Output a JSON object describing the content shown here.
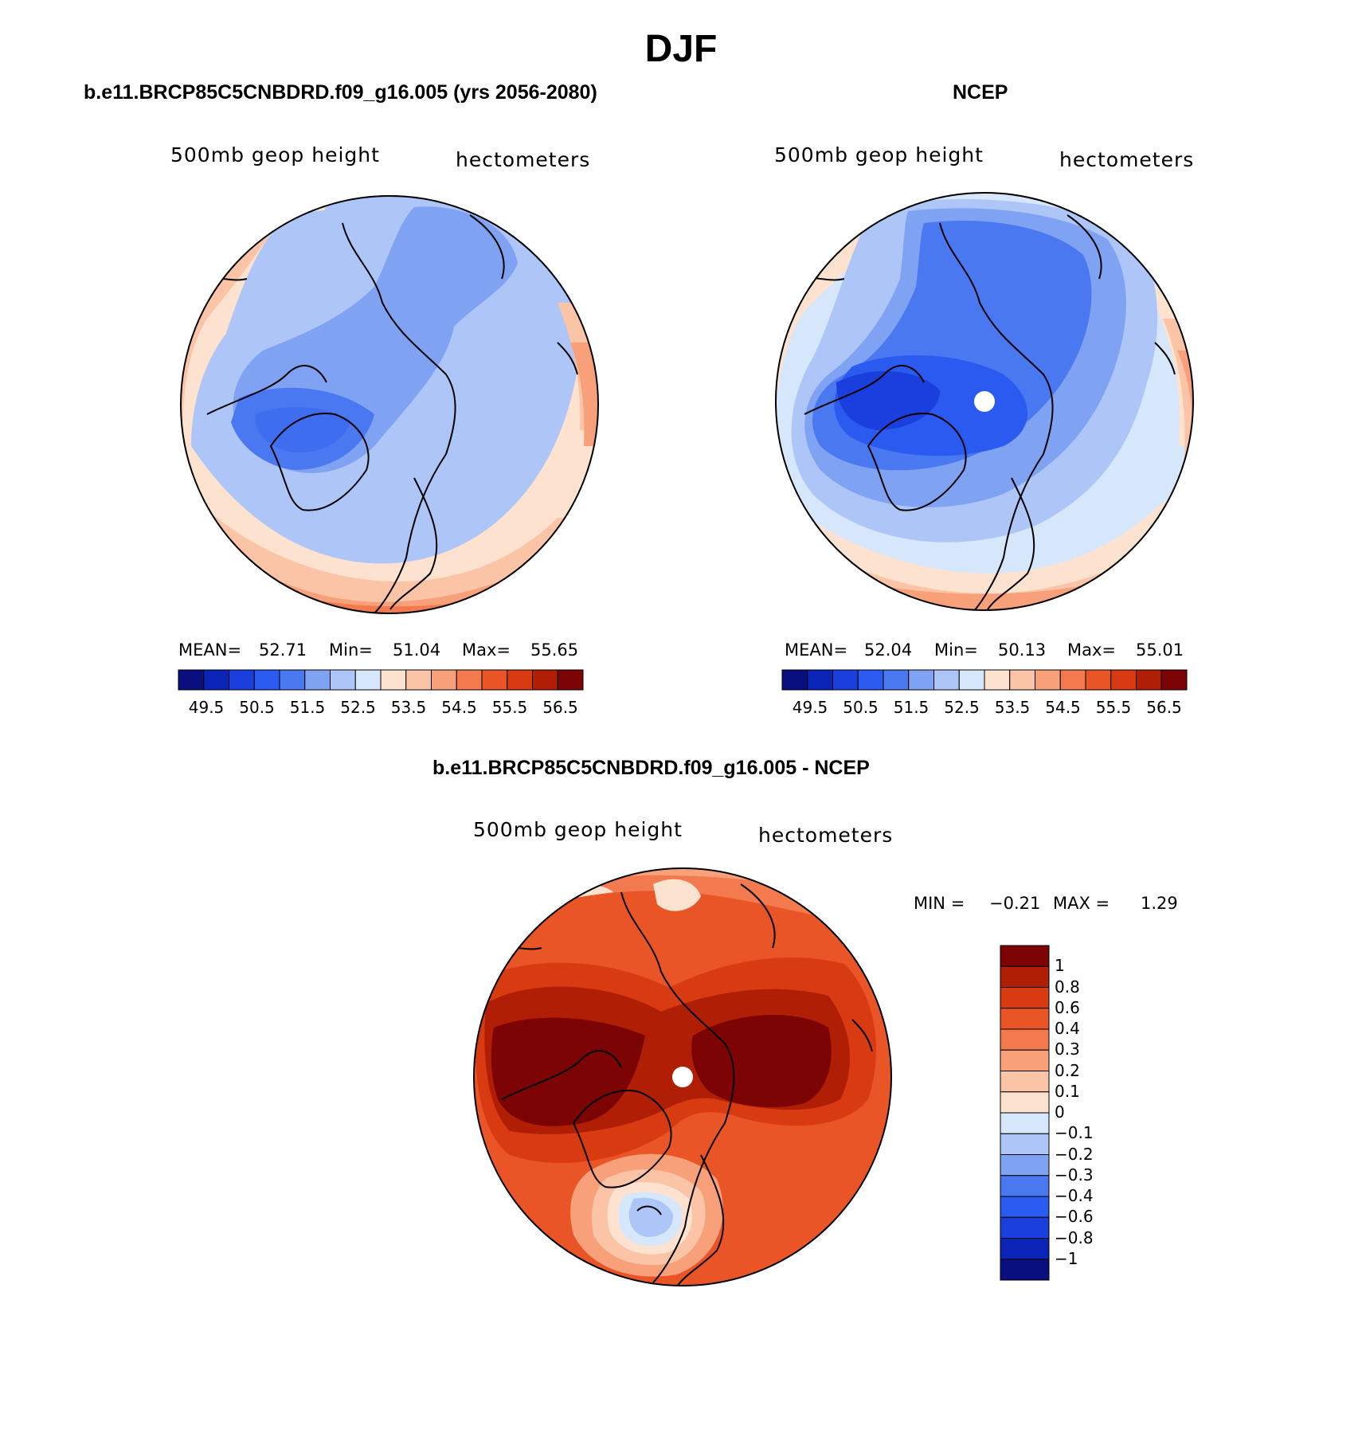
{
  "season": "DJF",
  "panels": [
    {
      "title": "b.e11.BRCP85C5CNBDRD.f09_g16.005 (yrs 2056-2080)",
      "variable": "500mb geop height",
      "units": "hectometers",
      "stats": {
        "mean_label": "MEAN=",
        "mean": "52.71",
        "min_label": "Min=",
        "min": "51.04",
        "max_label": "Max=",
        "max": "55.65"
      },
      "colorbar_labels": [
        "49.5",
        "50.5",
        "51.5",
        "52.5",
        "53.5",
        "54.5",
        "55.5",
        "56.5"
      ]
    },
    {
      "title": "NCEP",
      "variable": "500mb geop height",
      "units": "hectometers",
      "stats": {
        "mean_label": "MEAN=",
        "mean": "52.04",
        "min_label": "Min=",
        "min": "50.13",
        "max_label": "Max=",
        "max": "55.01"
      },
      "colorbar_labels": [
        "49.5",
        "50.5",
        "51.5",
        "52.5",
        "53.5",
        "54.5",
        "55.5",
        "56.5"
      ]
    },
    {
      "title": "b.e11.BRCP85C5CNBDRD.f09_g16.005 - NCEP",
      "variable": "500mb geop height",
      "units": "hectometers",
      "stats": {
        "min_label": "MIN =",
        "min": "-0.21",
        "max_label": "MAX =",
        "max": "1.29"
      },
      "colorbar_labels": [
        "1",
        "0.8",
        "0.6",
        "0.4",
        "0.3",
        "0.2",
        "0.1",
        "0",
        "-0.1",
        "-0.2",
        "-0.3",
        "-0.4",
        "-0.6",
        "-0.8",
        "-1"
      ]
    }
  ],
  "colors": {
    "abs_scale": [
      "#0a0f7f",
      "#0a24b8",
      "#1a3fdc",
      "#2b5af0",
      "#4a78f0",
      "#7fa2f2",
      "#adc6f7",
      "#d6e6fb",
      "#fde3cf",
      "#fbc4a6",
      "#f7a07a",
      "#f27a4e",
      "#ea5528",
      "#d83a12",
      "#b01e05",
      "#7c0404"
    ],
    "diff_scale": [
      "#7c0404",
      "#b01e05",
      "#d83a12",
      "#ea5528",
      "#f27a4e",
      "#f7a07a",
      "#fbc4a6",
      "#fde3cf",
      "#d6e6fb",
      "#adc6f7",
      "#7fa2f2",
      "#4a78f0",
      "#2b5af0",
      "#1a3fdc",
      "#0a24b8",
      "#0a0f7f"
    ]
  }
}
